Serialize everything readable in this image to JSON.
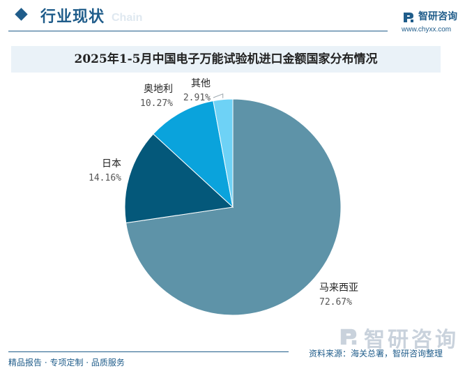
{
  "header": {
    "section_title": "行业现状",
    "watermark_text": "Chain",
    "brand_name": "智研咨询",
    "brand_url": "www.chyxx.com"
  },
  "chart_data": {
    "type": "pie",
    "title": "2025年1-5月中国电子万能试验机进口金额国家分布情况",
    "slices": [
      {
        "label": "马来西亚",
        "value": 72.67,
        "value_label": "72.67%",
        "color": "#5e93a8"
      },
      {
        "label": "日本",
        "value": 14.16,
        "value_label": "14.16%",
        "color": "#04587a"
      },
      {
        "label": "奥地利",
        "value": 10.27,
        "value_label": "10.27%",
        "color": "#0aa3dc"
      },
      {
        "label": "其他",
        "value": 2.91,
        "value_label": "2.91%",
        "color": "#6ed2f6"
      }
    ]
  },
  "footer": {
    "services": "精品报告 · 专项定制 · 品质服务",
    "brand": "智研咨询",
    "source": "资料来源：海关总署，智研咨询整理"
  },
  "colors": {
    "accent": "#1f5c8a",
    "title_band": "#eaf2f8"
  }
}
